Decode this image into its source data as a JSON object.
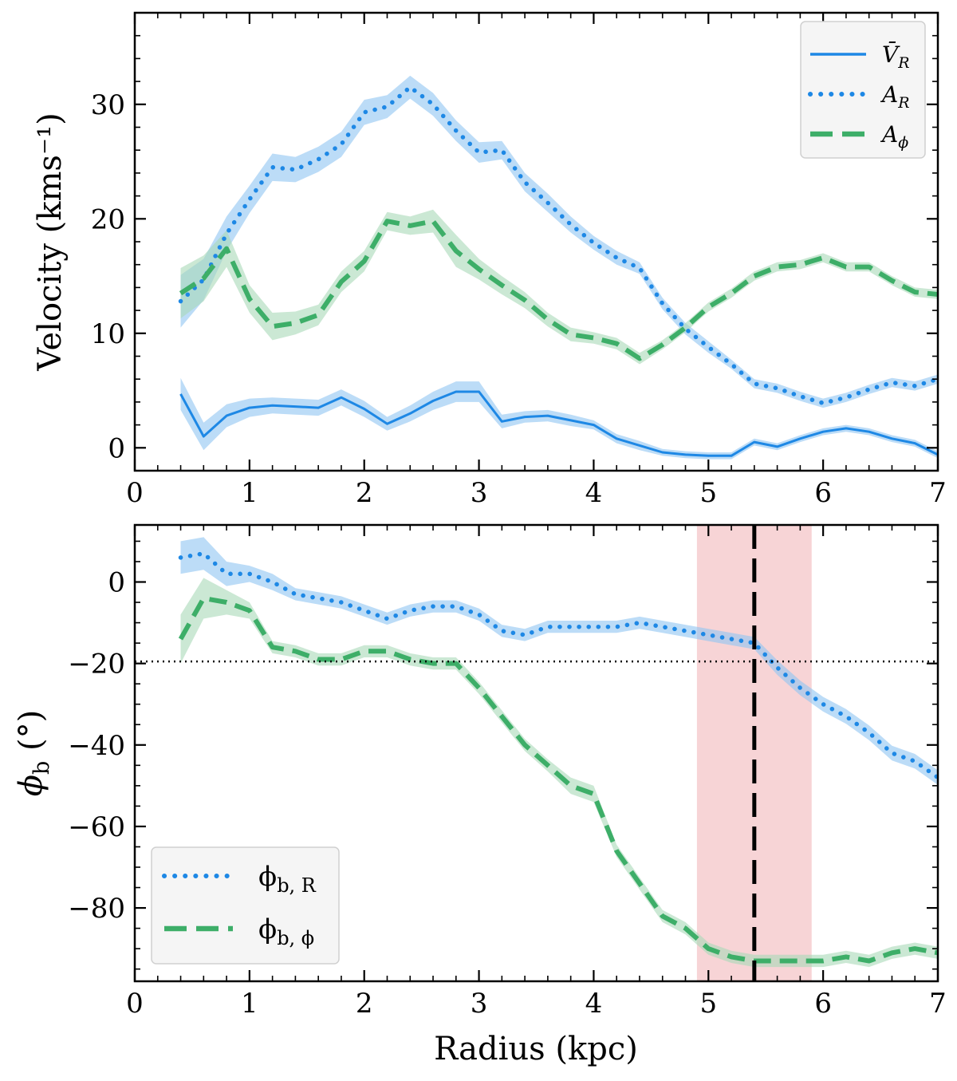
{
  "chart_data": [
    {
      "type": "line",
      "ylabel": "Velocity (kms⁻¹)",
      "xlabel": "",
      "xlim": [
        0,
        7
      ],
      "ylim": [
        -2,
        38
      ],
      "xticks": [
        "0",
        "1",
        "2",
        "3",
        "4",
        "5",
        "6",
        "7"
      ],
      "yticks": [
        "0",
        "10",
        "20",
        "30"
      ],
      "legend_position": "top-right",
      "series": [
        {
          "name": "V̄_R",
          "legend": "V̄",
          "legend_sub": "R",
          "style": "solid",
          "color": "#1e88e5",
          "band_color": "#90c4f2",
          "x": [
            0.4,
            0.6,
            0.8,
            1.0,
            1.2,
            1.4,
            1.6,
            1.8,
            2.0,
            2.2,
            2.4,
            2.6,
            2.8,
            3.0,
            3.2,
            3.4,
            3.6,
            3.8,
            4.0,
            4.2,
            4.4,
            4.6,
            4.8,
            5.0,
            5.2,
            5.4,
            5.6,
            5.8,
            6.0,
            6.2,
            6.4,
            6.6,
            6.8,
            7.0
          ],
          "y": [
            4.7,
            1.0,
            2.8,
            3.5,
            3.7,
            3.6,
            3.5,
            4.4,
            3.4,
            2.1,
            3.0,
            4.1,
            4.9,
            4.9,
            2.3,
            2.7,
            2.8,
            2.4,
            2.0,
            0.8,
            0.2,
            -0.4,
            -0.6,
            -0.7,
            -0.7,
            0.5,
            0.1,
            0.8,
            1.4,
            1.7,
            1.4,
            0.8,
            0.4,
            -0.6
          ],
          "err": [
            1.4,
            1.2,
            1.0,
            0.8,
            0.7,
            0.7,
            0.7,
            0.7,
            0.7,
            0.6,
            0.7,
            0.8,
            0.9,
            0.9,
            0.6,
            0.5,
            0.5,
            0.5,
            0.4,
            0.4,
            0.4,
            0.3,
            0.3,
            0.3,
            0.3,
            0.3,
            0.3,
            0.3,
            0.3,
            0.3,
            0.3,
            0.3,
            0.3,
            0.3
          ]
        },
        {
          "name": "A_R",
          "legend": "A",
          "legend_sub": "R",
          "style": "dotted",
          "color": "#1e88e5",
          "band_color": "#90c4f2",
          "x": [
            0.4,
            0.6,
            0.8,
            1.0,
            1.2,
            1.4,
            1.6,
            1.8,
            2.0,
            2.2,
            2.4,
            2.6,
            2.8,
            3.0,
            3.2,
            3.4,
            3.6,
            3.8,
            4.0,
            4.2,
            4.4,
            4.6,
            4.8,
            5.0,
            5.2,
            5.4,
            5.6,
            5.8,
            6.0,
            6.2,
            6.4,
            6.6,
            6.8,
            7.0
          ],
          "y": [
            12.8,
            14.7,
            18.7,
            21.7,
            24.5,
            24.3,
            25.2,
            26.5,
            29.3,
            29.8,
            31.5,
            30.0,
            27.7,
            25.8,
            26.0,
            23.2,
            21.4,
            19.5,
            17.9,
            16.6,
            15.7,
            12.6,
            10.4,
            8.8,
            7.3,
            5.6,
            5.2,
            4.5,
            3.9,
            4.4,
            5.1,
            5.7,
            5.4,
            6.0
          ],
          "err": [
            2.3,
            1.8,
            1.5,
            1.2,
            1.2,
            1.1,
            1.1,
            1.1,
            1.1,
            1.0,
            1.0,
            1.0,
            0.9,
            0.9,
            0.8,
            0.8,
            0.8,
            0.7,
            0.6,
            0.6,
            0.5,
            0.5,
            0.5,
            0.5,
            0.4,
            0.4,
            0.4,
            0.4,
            0.4,
            0.4,
            0.4,
            0.4,
            0.4,
            0.4
          ]
        },
        {
          "name": "A_ϕ",
          "legend": "A",
          "legend_sub": "ϕ",
          "style": "dashed",
          "color": "#3dae68",
          "band_color": "#a8d9b8",
          "x": [
            0.4,
            0.6,
            0.8,
            1.0,
            1.2,
            1.4,
            1.6,
            1.8,
            2.0,
            2.2,
            2.4,
            2.6,
            2.8,
            3.0,
            3.2,
            3.4,
            3.6,
            3.8,
            4.0,
            4.2,
            4.4,
            4.6,
            4.8,
            5.0,
            5.2,
            5.4,
            5.6,
            5.8,
            6.0,
            6.2,
            6.4,
            6.6,
            6.8,
            7.0
          ],
          "y": [
            13.5,
            14.8,
            17.4,
            13.0,
            10.6,
            10.9,
            11.6,
            14.5,
            16.3,
            19.8,
            19.4,
            19.8,
            17.2,
            15.6,
            14.2,
            12.9,
            11.2,
            9.9,
            9.6,
            9.1,
            7.8,
            9.0,
            10.5,
            12.3,
            13.5,
            15.0,
            15.8,
            16.0,
            16.6,
            15.8,
            15.8,
            14.6,
            13.6,
            13.4
          ],
          "err": [
            2.2,
            2.0,
            1.6,
            1.2,
            1.2,
            1.0,
            0.9,
            0.9,
            0.9,
            0.8,
            0.8,
            1.0,
            1.4,
            0.9,
            0.8,
            0.7,
            0.6,
            0.6,
            0.5,
            0.5,
            0.5,
            0.4,
            0.4,
            0.4,
            0.4,
            0.4,
            0.4,
            0.4,
            0.4,
            0.4,
            0.4,
            0.4,
            0.4,
            0.4
          ]
        }
      ]
    },
    {
      "type": "line",
      "ylabel": "ϕ",
      "ylabel_sub": "b",
      "ylabel_unit": " (°)",
      "xlabel": "Radius (kpc)",
      "xlim": [
        0,
        7
      ],
      "ylim": [
        -98,
        14
      ],
      "xticks": [
        "0",
        "1",
        "2",
        "3",
        "4",
        "5",
        "6",
        "7"
      ],
      "yticks": [
        "0",
        "−20",
        "−40",
        "−60",
        "−80"
      ],
      "legend_position": "bottom-left",
      "reference_line": {
        "y": -19.5,
        "style": "dotted"
      },
      "vertical_line": {
        "x": 5.4,
        "style": "dashed"
      },
      "shaded_region": {
        "x": [
          4.9,
          5.9
        ],
        "color": "#f7d4d6"
      },
      "series": [
        {
          "name": "ϕ_b,R",
          "legend": "ϕ",
          "legend_sub": "b, R",
          "style": "dotted",
          "color": "#1e88e5",
          "band_color": "#90c4f2",
          "x": [
            0.4,
            0.6,
            0.8,
            1.0,
            1.2,
            1.4,
            1.6,
            1.8,
            2.0,
            2.2,
            2.4,
            2.6,
            2.8,
            3.0,
            3.2,
            3.4,
            3.6,
            3.8,
            4.0,
            4.2,
            4.4,
            4.6,
            4.8,
            5.0,
            5.2,
            5.4,
            5.6,
            5.8,
            6.0,
            6.2,
            6.4,
            6.6,
            6.8,
            7.0
          ],
          "y": [
            6,
            7,
            2,
            2,
            0,
            -3,
            -4,
            -5,
            -7,
            -9,
            -7,
            -6,
            -6,
            -8,
            -12,
            -13,
            -11,
            -11,
            -11,
            -11,
            -10,
            -11,
            -12,
            -13,
            -14,
            -15,
            -21,
            -26,
            -30,
            -33,
            -37,
            -42,
            -44,
            -48
          ],
          "err": [
            4,
            4,
            3,
            2,
            2,
            1.5,
            1.5,
            1.5,
            1.5,
            1.5,
            1.5,
            1.5,
            1.5,
            1.5,
            1.5,
            1.5,
            1.5,
            1.5,
            1.5,
            1.5,
            1.5,
            1.5,
            1.5,
            1.5,
            1.5,
            1.5,
            1.8,
            1.8,
            1.8,
            1.8,
            1.8,
            1.8,
            1.8,
            1.8
          ]
        },
        {
          "name": "ϕ_b,ϕ",
          "legend": "ϕ",
          "legend_sub": "b, ϕ",
          "style": "dashed",
          "color": "#3dae68",
          "band_color": "#a8d9b8",
          "x": [
            0.4,
            0.6,
            0.8,
            1.0,
            1.2,
            1.4,
            1.6,
            1.8,
            2.0,
            2.2,
            2.4,
            2.6,
            2.8,
            3.0,
            3.2,
            3.4,
            3.6,
            3.8,
            4.0,
            4.2,
            4.4,
            4.6,
            4.8,
            5.0,
            5.2,
            5.4,
            5.6,
            5.8,
            6.0,
            6.2,
            6.4,
            6.6,
            6.8,
            7.0
          ],
          "y": [
            -14,
            -4,
            -5,
            -7,
            -16,
            -17,
            -19,
            -19,
            -17,
            -17,
            -19,
            -20,
            -20,
            -26,
            -33,
            -40,
            -45,
            -50,
            -52,
            -66,
            -74,
            -82,
            -85,
            -90,
            -92,
            -93,
            -93,
            -93,
            -93,
            -92,
            -93,
            -91,
            -90,
            -91
          ],
          "err": [
            6,
            5,
            3,
            2,
            1.5,
            1.5,
            1.5,
            1.5,
            1.5,
            1.5,
            1.5,
            1.5,
            1.5,
            1.5,
            1.5,
            1.5,
            1.5,
            2,
            2,
            1.5,
            1.5,
            1.5,
            1.5,
            1.5,
            1.5,
            1.5,
            1.5,
            1.5,
            1.5,
            1.5,
            1.5,
            1.5,
            1.5,
            1.5
          ]
        }
      ]
    }
  ]
}
